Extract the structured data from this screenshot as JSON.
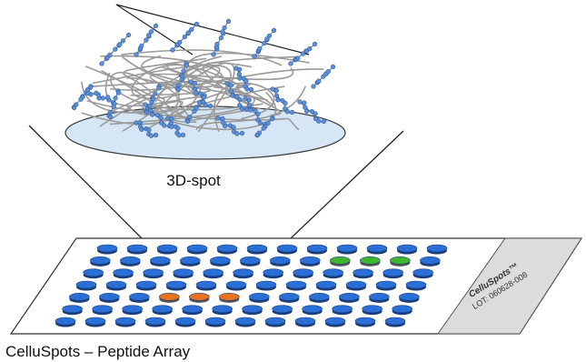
{
  "spot_label": "3D-spot",
  "array_title": "CelluSpots – Peptide Array",
  "slide_label": {
    "brand": "CelluSpots™",
    "lot": "LOT: 060628-008"
  },
  "colors": {
    "spot_default": "#2a6fd6",
    "spot_highlight_green": "#3fb52f",
    "spot_highlight_orange": "#e8731e",
    "fiber": "#9a9a9a",
    "peptide_bead": "#5b8fd6",
    "disc_fill": "#d6e6f6",
    "label_strip": "#dcdcdc"
  },
  "array": {
    "rows": 7,
    "cols": 12,
    "highlight_green": [
      [
        1,
        8
      ],
      [
        1,
        9
      ],
      [
        1,
        10
      ]
    ],
    "highlight_orange": [
      [
        4,
        3
      ],
      [
        4,
        4
      ],
      [
        4,
        5
      ]
    ]
  }
}
